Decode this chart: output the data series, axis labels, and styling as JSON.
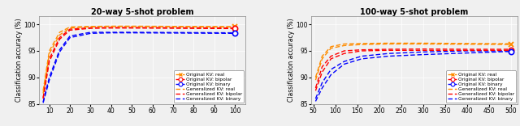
{
  "plot1": {
    "title": "20-way 5-shot problem",
    "ylabel": "Classification accuracy (%)",
    "xlim": [
      5,
      105
    ],
    "ylim": [
      85,
      101.5
    ],
    "yticks": [
      85,
      90,
      95,
      100
    ],
    "xticks": [
      10,
      20,
      30,
      40,
      50,
      60,
      70,
      80,
      90,
      100
    ],
    "x_curve": [
      7,
      10,
      15,
      20,
      30,
      40,
      50,
      100
    ],
    "orig_real": [
      87.0,
      94.5,
      98.0,
      99.3,
      99.55,
      99.6,
      99.6,
      99.5
    ],
    "orig_bipolar": [
      86.0,
      93.0,
      97.2,
      98.9,
      99.25,
      99.3,
      99.3,
      99.2
    ],
    "orig_binary": [
      85.2,
      89.5,
      94.8,
      97.5,
      98.3,
      98.4,
      98.4,
      98.3
    ],
    "gen_real": [
      87.5,
      95.0,
      98.5,
      99.5,
      99.6,
      99.65,
      99.65,
      99.55
    ],
    "gen_bipolar": [
      86.2,
      93.5,
      97.5,
      99.1,
      99.35,
      99.4,
      99.4,
      99.3
    ],
    "gen_binary": [
      85.4,
      90.0,
      95.2,
      97.8,
      98.5,
      98.5,
      98.5,
      98.4
    ],
    "end_x": 100,
    "end_orig_real": 99.5,
    "end_orig_bipolar": 99.2,
    "end_orig_binary": 98.3
  },
  "plot2": {
    "title": "100-way 5-shot problem",
    "ylabel": "Classification accuracy (%)",
    "xlim": [
      45,
      515
    ],
    "ylim": [
      85,
      101.5
    ],
    "yticks": [
      85,
      90,
      95,
      100
    ],
    "xticks": [
      50,
      100,
      150,
      200,
      250,
      300,
      350,
      400,
      450,
      500
    ],
    "x_curve": [
      55,
      70,
      90,
      120,
      160,
      220,
      300,
      400,
      500
    ],
    "orig_real": [
      89.5,
      93.5,
      95.5,
      96.0,
      96.2,
      96.3,
      96.3,
      96.25,
      96.2
    ],
    "orig_bipolar": [
      87.5,
      91.0,
      93.5,
      94.5,
      95.0,
      95.1,
      95.1,
      95.1,
      95.1
    ],
    "orig_binary": [
      85.5,
      88.0,
      90.5,
      92.5,
      93.5,
      94.0,
      94.3,
      94.6,
      94.9
    ],
    "gen_real": [
      90.0,
      94.0,
      95.8,
      96.3,
      96.4,
      96.45,
      96.45,
      96.4,
      96.35
    ],
    "gen_bipolar": [
      88.0,
      92.0,
      94.0,
      95.0,
      95.2,
      95.3,
      95.35,
      95.3,
      95.3
    ],
    "gen_binary": [
      86.0,
      89.0,
      91.5,
      93.0,
      94.0,
      94.5,
      94.8,
      95.0,
      95.0
    ],
    "end_x": 500,
    "end_orig_real": 96.2,
    "end_orig_bipolar": 95.1,
    "end_orig_binary": 94.9
  },
  "colors": {
    "real": "#FF8C00",
    "bipolar": "#FF0000",
    "binary": "#0000FF"
  },
  "bg_color": "#F0F0F0",
  "legend_labels": [
    "Original KV: real",
    "Original KV: bipolar",
    "Original KV: binary",
    "Generalized KV: real",
    "Generalized KV: bipolar",
    "Generalized KV: binary"
  ]
}
